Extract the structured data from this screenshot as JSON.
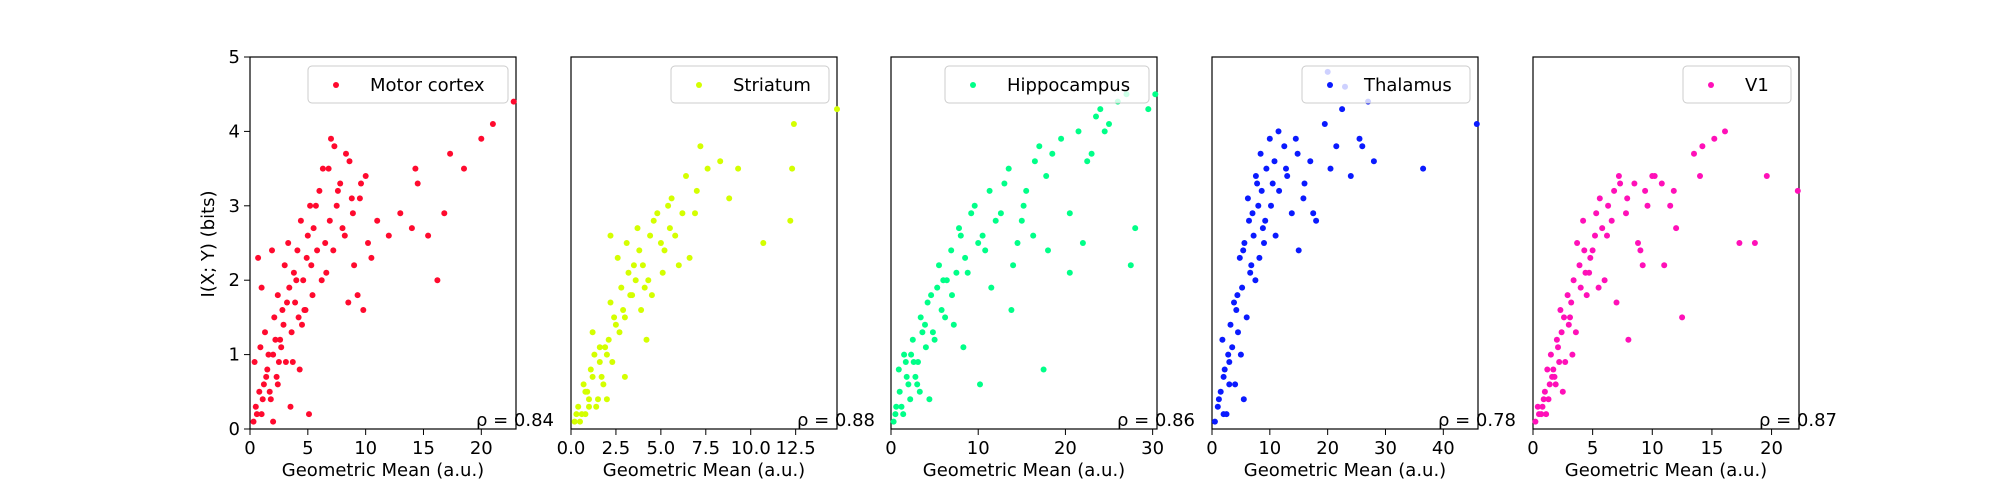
{
  "figure": {
    "ylabel": "I(X; Y) (bits)"
  },
  "chart_data": [
    {
      "type": "scatter",
      "legend": "Motor cortex",
      "legend_position": "top-right",
      "color": "#ff0a2e",
      "xlabel": "Geometric Mean (a.u.)",
      "ylabel": "I(X; Y) (bits)",
      "xlim": [
        0,
        23
      ],
      "ylim": [
        0,
        5
      ],
      "xticks": [
        0,
        5,
        10,
        15,
        20
      ],
      "xtick_labels": [
        "0",
        "5",
        "10",
        "15",
        "20"
      ],
      "yticks": [
        0,
        1,
        2,
        3,
        4,
        5
      ],
      "ytick_labels": [
        "0",
        "1",
        "2",
        "3",
        "4",
        "5"
      ],
      "annotation": "ρ = 0.84",
      "grid": false,
      "series": [
        {
          "x": [
            0.3,
            0.5,
            0.8,
            1.0,
            1.2,
            1.5,
            1.8,
            2.0,
            2.3,
            2.6,
            0.4,
            0.9,
            1.3,
            1.7,
            2.1,
            2.5,
            2.9,
            3.2,
            0.6,
            1.1,
            1.6,
            2.2,
            2.8,
            3.4,
            3.8,
            4.2,
            1.4,
            2.4,
            3.0,
            3.6,
            4.1,
            4.6,
            5.0,
            2.7,
            3.3,
            3.9,
            4.4,
            4.9,
            5.3,
            5.7,
            3.1,
            4.0,
            4.8,
            5.5,
            6.0,
            6.5,
            4.5,
            5.2,
            5.8,
            6.3,
            6.9,
            7.3,
            7.8,
            8.2,
            8.6,
            9.0,
            9.5,
            10.0,
            6.2,
            7.0,
            7.6,
            8.3,
            8.9,
            9.6,
            5.4,
            6.8,
            7.5,
            8.0,
            8.8,
            9.3,
            10.2,
            11.0,
            12.0,
            13.0,
            14.0,
            14.5,
            14.3,
            15.4,
            16.2,
            16.8,
            17.3,
            18.5,
            20.0,
            21.0,
            22.8,
            3.5,
            4.3,
            5.1,
            2.0,
            1.0,
            0.7,
            1.9,
            2.4,
            3.7,
            4.7,
            6.6,
            7.2,
            8.5,
            9.8,
            10.5
          ],
          "y": [
            0.1,
            0.3,
            0.5,
            0.2,
            0.6,
            0.8,
            0.4,
            1.0,
            0.7,
            1.2,
            0.9,
            1.1,
            1.3,
            0.5,
            1.5,
            0.9,
            1.4,
            1.7,
            0.2,
            0.4,
            1.0,
            1.2,
            1.6,
            1.9,
            2.1,
            1.5,
            0.7,
            1.8,
            2.2,
            1.3,
            2.4,
            2.0,
            2.6,
            1.1,
            2.5,
            1.7,
            2.8,
            2.3,
            2.2,
            3.0,
            0.9,
            2.0,
            1.6,
            2.7,
            3.2,
            2.5,
            1.4,
            3.0,
            2.4,
            3.5,
            2.8,
            3.8,
            3.3,
            2.6,
            3.6,
            2.2,
            3.1,
            3.4,
            2.0,
            3.9,
            3.2,
            3.7,
            2.9,
            3.3,
            1.8,
            3.5,
            3.0,
            2.7,
            3.1,
            1.8,
            2.5,
            2.8,
            2.6,
            2.9,
            2.7,
            3.3,
            3.5,
            2.6,
            2.0,
            2.9,
            3.7,
            3.5,
            3.9,
            4.1,
            4.4,
            0.3,
            0.8,
            0.2,
            0.1,
            1.9,
            2.3,
            2.4,
            0.6,
            0.9,
            1.6,
            2.1,
            2.4,
            1.7,
            1.6,
            2.3
          ]
        }
      ]
    },
    {
      "type": "scatter",
      "legend": "Striatum",
      "legend_position": "top-right",
      "color": "#d4ff00",
      "xlabel": "Geometric Mean (a.u.)",
      "xlim": [
        0,
        14.8
      ],
      "ylim": [
        0,
        5
      ],
      "xticks": [
        0,
        2.5,
        5.0,
        7.5,
        10.0,
        12.5
      ],
      "xtick_labels": [
        "0.0",
        "2.5",
        "5.0",
        "7.5",
        "10.0",
        "12.5"
      ],
      "annotation": "ρ = 0.88",
      "grid": false,
      "series": [
        {
          "x": [
            0.2,
            0.4,
            0.6,
            0.8,
            1.0,
            1.2,
            1.4,
            1.6,
            1.8,
            2.0,
            0.3,
            0.7,
            1.1,
            1.5,
            1.9,
            2.3,
            2.7,
            3.0,
            0.5,
            0.9,
            1.3,
            1.7,
            2.1,
            2.5,
            2.9,
            3.3,
            3.6,
            1.0,
            1.6,
            2.2,
            2.8,
            3.2,
            3.5,
            3.8,
            4.1,
            2.4,
            2.6,
            3.1,
            3.4,
            3.7,
            4.0,
            4.4,
            4.8,
            3.9,
            4.3,
            4.6,
            5.0,
            5.4,
            5.8,
            6.2,
            5.2,
            5.6,
            6.0,
            6.4,
            6.9,
            7.2,
            4.5,
            5.1,
            5.5,
            6.6,
            7.0,
            7.6,
            8.3,
            8.8,
            9.3,
            10.7,
            12.2,
            12.3,
            12.4,
            14.8,
            1.2,
            0.8,
            2.0,
            3.0,
            2.2,
            4.2
          ],
          "y": [
            0.1,
            0.3,
            0.2,
            0.5,
            0.4,
            0.7,
            0.3,
            0.9,
            0.6,
            1.0,
            0.2,
            0.6,
            0.8,
            0.4,
            1.1,
            0.9,
            1.3,
            1.5,
            0.1,
            0.5,
            1.0,
            0.7,
            1.2,
            1.4,
            1.6,
            1.8,
            2.0,
            0.3,
            1.1,
            1.7,
            1.9,
            2.1,
            2.2,
            2.4,
            1.9,
            1.5,
            2.3,
            2.5,
            1.8,
            2.7,
            2.2,
            2.6,
            2.9,
            1.6,
            2.0,
            2.8,
            2.5,
            3.0,
            2.6,
            2.9,
            2.4,
            3.1,
            2.2,
            3.4,
            2.9,
            3.8,
            1.8,
            2.1,
            2.7,
            2.3,
            3.2,
            3.5,
            3.6,
            3.1,
            3.5,
            2.5,
            2.8,
            3.5,
            4.1,
            4.3,
            1.3,
            0.2,
            0.4,
            0.7,
            2.6,
            1.2
          ]
        }
      ]
    },
    {
      "type": "scatter",
      "legend": "Hippocampus",
      "legend_position": "top-right",
      "color": "#00ff88",
      "xlabel": "Geometric Mean (a.u.)",
      "xlim": [
        0,
        30.5
      ],
      "ylim": [
        0,
        5
      ],
      "xticks": [
        0,
        10,
        20,
        30
      ],
      "xtick_labels": [
        "0",
        "10",
        "20",
        "30"
      ],
      "annotation": "ρ = 0.86",
      "grid": false,
      "series": [
        {
          "x": [
            0.3,
            0.6,
            1.0,
            1.4,
            1.8,
            2.2,
            2.6,
            3.0,
            0.5,
            0.9,
            1.5,
            2.0,
            2.5,
            3.1,
            3.6,
            4.0,
            1.2,
            2.3,
            3.4,
            4.2,
            4.8,
            5.3,
            5.8,
            6.4,
            2.8,
            3.9,
            4.6,
            5.5,
            6.2,
            6.9,
            7.5,
            8.0,
            5.0,
            6.0,
            7.0,
            7.8,
            8.5,
            9.2,
            10.0,
            10.8,
            7.2,
            8.8,
            9.6,
            10.5,
            11.3,
            12.0,
            13.0,
            11.5,
            12.6,
            13.5,
            14.5,
            15.5,
            16.5,
            17.0,
            14.0,
            15.2,
            16.3,
            17.8,
            18.5,
            19.5,
            20.5,
            21.5,
            22.5,
            23.5,
            24.0,
            25.0,
            26.0,
            27.0,
            28.0,
            29.5,
            30.3,
            13.8,
            18.0,
            20.5,
            22.0,
            23.0,
            24.5,
            27.5,
            10.2,
            8.3,
            15.0,
            17.5,
            4.4,
            1.7,
            3.3
          ],
          "y": [
            0.1,
            0.3,
            0.5,
            0.2,
            0.7,
            0.4,
            0.9,
            0.6,
            0.2,
            0.8,
            1.0,
            0.6,
            1.2,
            0.9,
            1.3,
            1.1,
            0.3,
            1.0,
            1.5,
            1.7,
            1.3,
            1.9,
            1.6,
            2.0,
            0.7,
            1.4,
            1.8,
            2.2,
            1.5,
            2.4,
            2.1,
            2.6,
            1.2,
            2.0,
            1.8,
            2.7,
            2.3,
            2.9,
            2.5,
            2.4,
            1.4,
            2.1,
            3.0,
            2.6,
            3.2,
            2.8,
            3.3,
            1.9,
            2.9,
            3.5,
            2.5,
            3.2,
            3.6,
            3.8,
            2.2,
            3.0,
            2.6,
            3.4,
            3.7,
            3.9,
            2.9,
            4.0,
            3.6,
            4.2,
            4.3,
            4.1,
            4.4,
            4.5,
            2.7,
            4.3,
            4.5,
            1.6,
            2.4,
            2.1,
            2.5,
            3.7,
            4.0,
            2.2,
            0.6,
            1.1,
            2.8,
            0.8,
            0.4,
            0.9,
            0.5
          ]
        }
      ]
    },
    {
      "type": "scatter",
      "legend": "Thalamus",
      "legend_position": "top-right",
      "color": "#0a1aff",
      "xlabel": "Geometric Mean (a.u.)",
      "xlim": [
        0,
        46
      ],
      "ylim": [
        0,
        5
      ],
      "xticks": [
        0,
        10,
        20,
        30,
        40
      ],
      "xtick_labels": [
        "0",
        "10",
        "20",
        "30",
        "40"
      ],
      "annotation": "ρ = 0.78",
      "grid": false,
      "series": [
        {
          "x": [
            0.5,
            1.0,
            1.5,
            2.0,
            2.5,
            3.0,
            3.5,
            4.0,
            4.5,
            5.0,
            1.2,
            2.2,
            3.2,
            4.2,
            5.2,
            6.0,
            6.8,
            7.5,
            2.8,
            3.8,
            4.8,
            5.6,
            6.4,
            7.2,
            8.0,
            8.8,
            4.4,
            5.4,
            6.2,
            7.0,
            7.8,
            8.6,
            9.4,
            10.2,
            6.6,
            7.6,
            8.4,
            9.2,
            10.0,
            10.8,
            11.6,
            12.5,
            9.0,
            10.5,
            11.5,
            12.8,
            13.8,
            14.8,
            15.8,
            11.0,
            13.0,
            14.5,
            16.0,
            17.0,
            18.0,
            19.5,
            20.5,
            21.5,
            22.5,
            24.0,
            25.5,
            27.0,
            28.0,
            20.0,
            23.0,
            26.0,
            36.5,
            45.8,
            15.0,
            17.5,
            2.0,
            3.0,
            5.5,
            1.8,
            8.2
          ],
          "y": [
            0.1,
            0.3,
            0.5,
            0.7,
            0.2,
            0.9,
            1.1,
            0.6,
            1.3,
            1.0,
            0.4,
            0.8,
            1.4,
            1.6,
            1.9,
            1.5,
            2.2,
            2.0,
            1.0,
            1.7,
            2.3,
            2.5,
            2.8,
            2.6,
            3.0,
            2.7,
            1.8,
            2.4,
            3.1,
            2.9,
            3.3,
            3.2,
            3.5,
            3.0,
            2.1,
            3.4,
            3.7,
            2.8,
            3.9,
            3.6,
            3.2,
            3.8,
            2.5,
            3.3,
            4.0,
            3.5,
            2.9,
            3.7,
            3.1,
            2.6,
            3.4,
            3.9,
            3.3,
            3.6,
            2.8,
            4.1,
            3.5,
            3.8,
            4.3,
            3.4,
            3.9,
            4.4,
            3.6,
            4.8,
            4.6,
            3.8,
            3.5,
            4.1,
            2.4,
            2.9,
            0.2,
            0.6,
            0.4,
            1.2,
            2.3
          ]
        }
      ]
    },
    {
      "type": "scatter",
      "legend": "V1",
      "legend_position": "top-right",
      "color": "#ff10b8",
      "xlabel": "Geometric Mean (a.u.)",
      "xlim": [
        0,
        22.3
      ],
      "ylim": [
        0,
        5
      ],
      "xticks": [
        0,
        5,
        10,
        15,
        20
      ],
      "xtick_labels": [
        "0",
        "5",
        "10",
        "15",
        "20"
      ],
      "annotation": "ρ = 0.87",
      "grid": false,
      "series": [
        {
          "x": [
            0.2,
            0.4,
            0.7,
            1.0,
            1.3,
            1.6,
            1.9,
            2.2,
            0.5,
            0.9,
            1.2,
            1.5,
            1.8,
            2.1,
            2.4,
            2.7,
            3.0,
            0.8,
            1.4,
            2.0,
            2.6,
            3.2,
            3.6,
            4.0,
            4.4,
            1.7,
            2.3,
            2.9,
            3.4,
            3.9,
            4.3,
            4.8,
            5.2,
            3.1,
            3.7,
            4.2,
            4.7,
            5.3,
            5.8,
            6.3,
            4.5,
            5.0,
            5.6,
            6.2,
            6.8,
            7.3,
            7.8,
            6.0,
            6.6,
            7.2,
            7.9,
            8.5,
            9.0,
            9.6,
            10.2,
            8.0,
            8.8,
            9.4,
            10.0,
            10.8,
            11.5,
            12.0,
            12.5,
            13.5,
            14.0,
            14.2,
            15.2,
            16.1,
            17.3,
            18.6,
            19.6,
            22.2,
            11.0,
            11.8,
            2.5,
            1.1,
            3.3,
            5.5,
            7.0,
            9.2
          ],
          "y": [
            0.1,
            0.3,
            0.2,
            0.5,
            0.4,
            0.7,
            0.6,
            0.9,
            0.2,
            0.4,
            0.8,
            1.0,
            0.7,
            1.1,
            1.3,
            0.9,
            1.4,
            0.3,
            0.6,
            1.2,
            1.5,
            1.7,
            1.3,
            1.9,
            2.1,
            0.8,
            1.6,
            1.8,
            2.0,
            2.2,
            2.4,
            2.3,
            2.6,
            1.5,
            2.5,
            2.8,
            2.1,
            2.9,
            2.7,
            3.0,
            1.8,
            2.4,
            3.1,
            2.6,
            3.2,
            3.3,
            2.9,
            2.0,
            2.8,
            3.4,
            3.1,
            3.3,
            2.4,
            3.0,
            3.4,
            1.2,
            2.5,
            3.2,
            3.4,
            3.3,
            3.0,
            2.7,
            1.5,
            3.7,
            3.4,
            3.8,
            3.9,
            4.0,
            2.5,
            2.5,
            3.4,
            3.2,
            2.2,
            3.2,
            0.5,
            0.2,
            1.0,
            1.9,
            1.7,
            2.2
          ]
        }
      ]
    }
  ]
}
